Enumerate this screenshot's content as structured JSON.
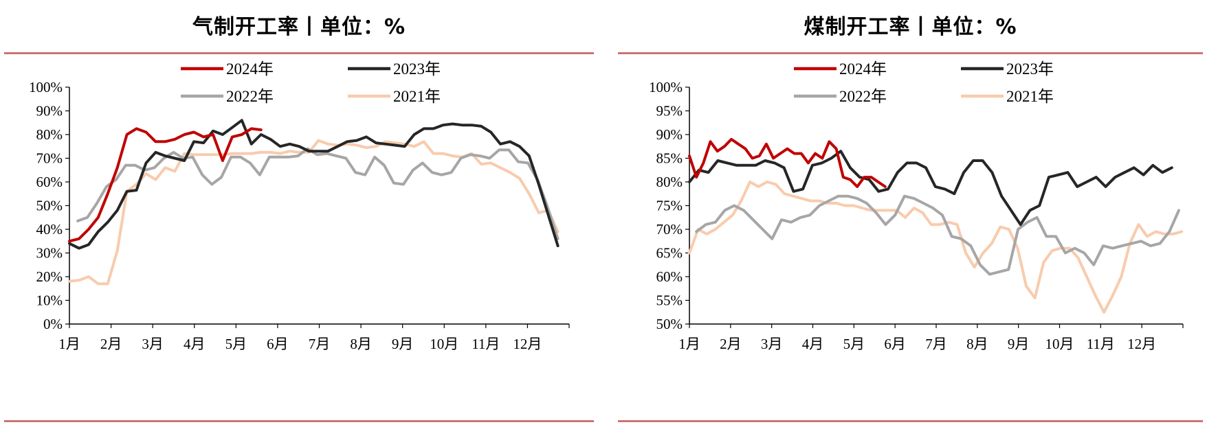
{
  "panels": {
    "gas_title": "气制开工率丨单位：%",
    "coal_title": "煤制开工率丨单位：%"
  },
  "colors": {
    "y2024": "#c00000",
    "y2023": "#262626",
    "y2022": "#a6a6a6",
    "y2021": "#f8cbad",
    "rule": "#c0504d"
  },
  "chart_data": [
    {
      "type": "line",
      "title": "气制开工率丨单位：%",
      "xlabel": "",
      "ylabel": "",
      "categories": [
        "1月",
        "2月",
        "3月",
        "4月",
        "5月",
        "6月",
        "7月",
        "8月",
        "9月",
        "10月",
        "11月",
        "12月"
      ],
      "x_range": [
        1,
        13
      ],
      "ylim": [
        0,
        100
      ],
      "yticks": [
        0,
        10,
        20,
        30,
        40,
        50,
        60,
        70,
        80,
        90,
        100
      ],
      "ytick_labels": [
        "0%",
        "10%",
        "20%",
        "30%",
        "40%",
        "50%",
        "60%",
        "70%",
        "80%",
        "90%",
        "100%"
      ],
      "legend": [
        "2024年",
        "2023年",
        "2022年",
        "2021年"
      ],
      "series": [
        {
          "name": "2024年",
          "color": "#c00000",
          "x": [
            1,
            1.23,
            1.46,
            1.69,
            1.92,
            2.15,
            2.38,
            2.61,
            2.84,
            3.07,
            3.3,
            3.53,
            3.76,
            3.99,
            4.22,
            4.45,
            4.68,
            4.91,
            5.14,
            5.37,
            5.6
          ],
          "values": [
            35,
            36,
            40,
            45,
            55,
            66,
            80,
            82.5,
            81,
            77,
            77,
            78,
            80,
            81,
            79,
            80,
            69,
            79,
            80,
            82.5,
            82
          ]
        },
        {
          "name": "2023年",
          "color": "#262626",
          "x": [
            1,
            1.23,
            1.46,
            1.69,
            1.92,
            2.15,
            2.38,
            2.61,
            2.84,
            3.07,
            3.3,
            3.53,
            3.76,
            3.99,
            4.22,
            4.45,
            4.68,
            4.91,
            5.14,
            5.37,
            5.6,
            5.83,
            6.06,
            6.29,
            6.52,
            6.75,
            6.98,
            7.21,
            7.44,
            7.67,
            7.9,
            8.13,
            8.36,
            8.59,
            8.82,
            9.05,
            9.28,
            9.51,
            9.74,
            9.97,
            10.2,
            10.43,
            10.66,
            10.89,
            11.12,
            11.35,
            11.58,
            11.81,
            12.04,
            12.27,
            12.5,
            12.73
          ],
          "values": [
            34,
            32,
            33.5,
            39,
            43,
            48,
            56,
            56.5,
            68,
            72.5,
            71,
            70,
            69,
            77,
            76.5,
            81.5,
            80,
            83,
            86,
            76,
            80,
            78,
            75,
            76,
            75,
            73,
            73,
            73,
            75,
            77,
            77.5,
            79,
            76.5,
            76,
            75.5,
            75,
            80,
            82.5,
            82.5,
            84,
            84.5,
            84,
            84,
            83.5,
            81,
            76,
            77,
            75,
            71,
            59,
            46,
            33
          ]
        },
        {
          "name": "2022年",
          "color": "#a6a6a6",
          "x": [
            1.2,
            1.43,
            1.66,
            1.89,
            2.12,
            2.35,
            2.58,
            2.81,
            3.04,
            3.27,
            3.5,
            3.73,
            3.96,
            4.19,
            4.42,
            4.65,
            4.88,
            5.11,
            5.34,
            5.57,
            5.8,
            6.03,
            6.26,
            6.49,
            6.72,
            6.95,
            7.18,
            7.41,
            7.64,
            7.87,
            8.1,
            8.33,
            8.56,
            8.79,
            9.02,
            9.25,
            9.48,
            9.71,
            9.94,
            10.17,
            10.4,
            10.63,
            10.86,
            11.09,
            11.32,
            11.55,
            11.78,
            12.01,
            12.24,
            12.47,
            12.73
          ],
          "values": [
            43.5,
            45,
            51,
            58,
            61,
            67,
            67,
            65,
            66,
            70,
            72.5,
            70,
            70.5,
            63,
            59,
            62,
            70.5,
            70.5,
            68,
            63,
            70.5,
            70.5,
            70.5,
            71,
            74,
            71.5,
            72,
            71,
            70,
            64,
            63,
            70.5,
            67,
            59.5,
            59,
            65,
            68,
            64,
            63,
            64,
            70,
            71.5,
            71,
            70,
            73.5,
            73.5,
            68.5,
            68,
            61,
            50,
            36
          ]
        },
        {
          "name": "2021年",
          "color": "#f8cbad",
          "x": [
            1,
            1.23,
            1.46,
            1.69,
            1.92,
            2.15,
            2.38,
            2.61,
            2.84,
            3.07,
            3.3,
            3.53,
            3.76,
            3.99,
            4.22,
            4.45,
            4.68,
            4.91,
            5.14,
            5.37,
            5.6,
            5.83,
            6.06,
            6.29,
            6.52,
            6.75,
            6.98,
            7.21,
            7.44,
            7.67,
            7.9,
            8.13,
            8.36,
            8.59,
            8.82,
            9.05,
            9.28,
            9.51,
            9.74,
            9.97,
            10.2,
            10.43,
            10.66,
            10.89,
            11.12,
            11.35,
            11.58,
            11.81,
            12.04,
            12.27,
            12.5,
            12.73
          ],
          "values": [
            18,
            18.5,
            20,
            17,
            17,
            31,
            56,
            59,
            63.5,
            61,
            66,
            64.5,
            72,
            71.5,
            71.5,
            71.5,
            71.5,
            72,
            72,
            72,
            72.5,
            72.5,
            72,
            73,
            72.5,
            72.5,
            77.5,
            76,
            75.5,
            76,
            75.5,
            74.5,
            75,
            77,
            76.5,
            76,
            75,
            77,
            72,
            72,
            71,
            70.5,
            72,
            67.5,
            68,
            66,
            64,
            61.5,
            55,
            47,
            48,
            39
          ]
        }
      ]
    },
    {
      "type": "line",
      "title": "煤制开工率丨单位：%",
      "xlabel": "",
      "ylabel": "",
      "categories": [
        "1月",
        "2月",
        "3月",
        "4月",
        "5月",
        "6月",
        "7月",
        "8月",
        "9月",
        "10月",
        "11月",
        "12月"
      ],
      "x_range": [
        1,
        13
      ],
      "ylim": [
        50,
        100
      ],
      "yticks": [
        50,
        55,
        60,
        65,
        70,
        75,
        80,
        85,
        90,
        95,
        100
      ],
      "ytick_labels": [
        "50%",
        "55%",
        "60%",
        "65%",
        "70%",
        "75%",
        "80%",
        "85%",
        "90%",
        "95%",
        "100%"
      ],
      "legend": [
        "2024年",
        "2023年",
        "2022年",
        "2021年"
      ],
      "series": [
        {
          "name": "2024年",
          "color": "#c00000",
          "x": [
            1,
            1.17,
            1.34,
            1.51,
            1.68,
            1.85,
            2.02,
            2.19,
            2.36,
            2.53,
            2.7,
            2.87,
            3.04,
            3.21,
            3.38,
            3.55,
            3.72,
            3.89,
            4.06,
            4.23,
            4.4,
            4.57,
            4.74,
            4.91,
            5.08,
            5.25,
            5.42,
            5.59,
            5.76
          ],
          "values": [
            85.5,
            81,
            84,
            88.5,
            86.5,
            87.5,
            89,
            88,
            87,
            85,
            85.5,
            88,
            85,
            86,
            87,
            86,
            86,
            84,
            86,
            85,
            88.5,
            87,
            81,
            80.5,
            79,
            81,
            81,
            80,
            79
          ]
        },
        {
          "name": "2023年",
          "color": "#262626",
          "x": [
            1,
            1.23,
            1.46,
            1.69,
            1.92,
            2.15,
            2.38,
            2.61,
            2.84,
            3.07,
            3.3,
            3.53,
            3.76,
            3.99,
            4.22,
            4.45,
            4.68,
            4.91,
            5.14,
            5.37,
            5.6,
            5.83,
            6.06,
            6.29,
            6.52,
            6.75,
            6.98,
            7.21,
            7.44,
            7.67,
            7.9,
            8.13,
            8.36,
            8.59,
            8.82,
            9.05,
            9.28,
            9.51,
            9.74,
            9.97,
            10.2,
            10.43,
            10.66,
            10.89,
            11.12,
            11.35,
            11.58,
            11.81,
            12.04,
            12.27,
            12.5,
            12.73
          ],
          "values": [
            80,
            82.5,
            82,
            84.5,
            84,
            83.5,
            83.5,
            83.5,
            84.5,
            84,
            83,
            78,
            78.5,
            83.5,
            84,
            85,
            86.5,
            83,
            81,
            80.5,
            78,
            78.5,
            82,
            84,
            84,
            83,
            79,
            78.5,
            77.5,
            82,
            84.5,
            84.5,
            82,
            77,
            74,
            71,
            74,
            75,
            81,
            81.5,
            82,
            79,
            80,
            81,
            79,
            81,
            82,
            83,
            81.5,
            83.5,
            82,
            83
          ]
        },
        {
          "name": "2022年",
          "color": "#a6a6a6",
          "x": [
            1.17,
            1.4,
            1.63,
            1.86,
            2.09,
            2.32,
            2.55,
            2.78,
            3.01,
            3.24,
            3.47,
            3.7,
            3.93,
            4.16,
            4.39,
            4.62,
            4.85,
            5.08,
            5.31,
            5.54,
            5.77,
            6,
            6.23,
            6.46,
            6.69,
            6.92,
            7.15,
            7.38,
            7.61,
            7.84,
            8.07,
            8.3,
            8.53,
            8.76,
            8.99,
            9.22,
            9.45,
            9.68,
            9.91,
            10.14,
            10.37,
            10.6,
            10.83,
            11.06,
            11.29,
            11.52,
            11.75,
            11.98,
            12.21,
            12.44,
            12.67,
            12.9
          ],
          "values": [
            69.5,
            71,
            71.5,
            74,
            75,
            74,
            72,
            70,
            68,
            72,
            71.5,
            72.5,
            73,
            75,
            76,
            77,
            77,
            76.5,
            75.5,
            73.5,
            71,
            73,
            77,
            76.5,
            75.5,
            74.5,
            73,
            68.5,
            68,
            66.5,
            62.5,
            60.5,
            61,
            61.5,
            70,
            71.5,
            72.5,
            68.5,
            68.5,
            65,
            66,
            65,
            62.5,
            66.5,
            66,
            66.5,
            67,
            67.5,
            66.5,
            67,
            69.5,
            74
          ]
        },
        {
          "name": "2021年",
          "color": "#f8cbad",
          "x": [
            1,
            1.21,
            1.42,
            1.63,
            1.84,
            2.05,
            2.26,
            2.47,
            2.68,
            2.89,
            3.1,
            3.31,
            3.52,
            3.73,
            3.94,
            4.15,
            4.36,
            4.57,
            4.78,
            4.99,
            5.2,
            5.41,
            5.62,
            5.83,
            6.04,
            6.25,
            6.46,
            6.67,
            6.88,
            7.09,
            7.3,
            7.51,
            7.72,
            7.93,
            8.14,
            8.35,
            8.56,
            8.77,
            8.98,
            9.19,
            9.4,
            9.61,
            9.82,
            10.03,
            10.24,
            10.45,
            10.66,
            10.87,
            11.08,
            11.29,
            11.5,
            11.71,
            11.92,
            12.13,
            12.34,
            12.55,
            12.76,
            12.97
          ],
          "values": [
            65,
            70,
            69,
            70,
            71.5,
            73,
            76,
            80,
            79,
            80,
            79.5,
            77.5,
            77,
            76.5,
            76,
            76,
            75.5,
            75.5,
            75,
            75,
            74.5,
            74,
            74,
            74,
            74,
            72.5,
            74.5,
            73.5,
            71,
            71,
            71.5,
            71,
            65,
            62,
            65,
            67,
            70.5,
            70,
            66,
            58,
            55.5,
            63,
            65.5,
            66,
            66,
            64,
            60,
            56,
            52.5,
            56,
            60,
            67,
            71,
            68.5,
            69.5,
            69,
            69,
            69.5
          ]
        }
      ]
    }
  ]
}
